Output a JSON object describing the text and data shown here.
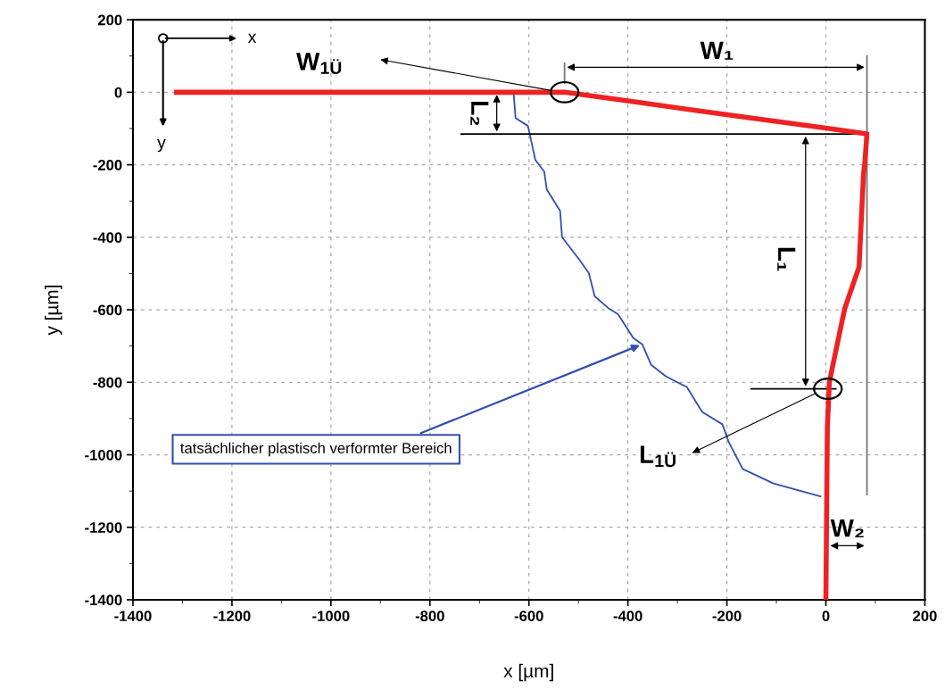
{
  "chart_data": {
    "type": "line",
    "xlabel": "x [µm]",
    "ylabel": "y [µm]",
    "xlim": [
      -1400,
      200
    ],
    "xticks": [
      -1400,
      -1200,
      -1000,
      -800,
      -600,
      -400,
      -200,
      0,
      200
    ],
    "ylim": [
      -1400,
      200
    ],
    "yticks": [
      -1400,
      -1200,
      -1000,
      -800,
      -600,
      -400,
      -200,
      0,
      200
    ],
    "grid": true,
    "line_style": "solid",
    "marker": "none",
    "series": [
      {
        "color": "#ee2222",
        "x": [
          -1312,
          -1000,
          -700,
          -551,
          -528,
          -400,
          -200,
          0,
          83,
          79,
          76,
          67,
          38,
          13,
          7,
          3,
          0
        ],
        "values": [
          0,
          0,
          0,
          0,
          0,
          -24,
          -62,
          -99,
          -115,
          -187,
          -228,
          -482,
          -597,
          -760,
          -801,
          -924,
          -1400
        ]
      },
      {
        "color": "#3050b0",
        "x": [
          -631,
          -627,
          -602,
          -596,
          -587,
          -569,
          -564,
          -537,
          -533,
          -515,
          -497,
          -479,
          -467,
          -438,
          -420,
          -389,
          -371,
          -353,
          -323,
          -281,
          -250,
          -209,
          -196,
          -168,
          -106,
          -11
        ],
        "values": [
          0,
          -71,
          -93,
          -130,
          -187,
          -219,
          -268,
          -327,
          -400,
          -432,
          -464,
          -499,
          -563,
          -597,
          -612,
          -678,
          -695,
          -752,
          -784,
          -813,
          -882,
          -916,
          -966,
          -1039,
          -1079,
          -1115
        ]
      }
    ],
    "ref_lines": [
      {
        "axis": "x",
        "value": 83,
        "color": "#777777",
        "line_style": "solid"
      },
      {
        "axis": "y",
        "value": -115,
        "color": "#000000",
        "line_style": "solid"
      },
      {
        "axis": "y",
        "value": -818,
        "color": "#000000",
        "line_style": "solid"
      }
    ],
    "annotations": [
      "W$_{1Ü}$",
      "W₁",
      "L₂",
      "L₁",
      "L$_{1Ü}$",
      "W₂",
      {
        "text": "tatsächlicher plastisch verformter Bereich",
        "x": -371,
        "y": -695
      },
      "x",
      "y"
    ]
  }
}
